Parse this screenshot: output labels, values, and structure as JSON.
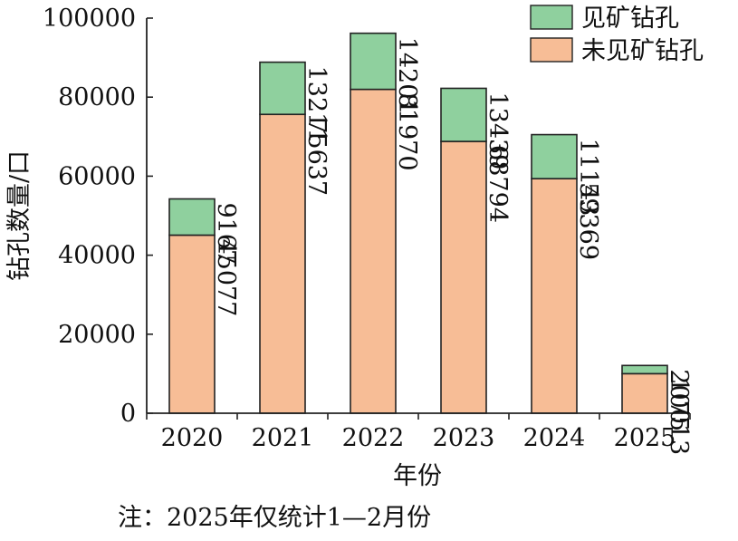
{
  "chart_data": {
    "type": "bar",
    "stacked": true,
    "categories": [
      "2020",
      "2021",
      "2022",
      "2023",
      "2024",
      "2025"
    ],
    "series": [
      {
        "name": "未见矿钻孔",
        "values": [
          45077,
          75637,
          81970,
          68794,
          59369,
          10013
        ],
        "color": "#f7bd96"
      },
      {
        "name": "见矿钻孔",
        "values": [
          9167,
          13211,
          14201,
          13439,
          11143,
          2075
        ],
        "color": "#8fd09e"
      }
    ],
    "xlabel": "年份",
    "ylabel": "钻孔数量/口",
    "ylim": [
      0,
      100000
    ],
    "yticks": [
      0,
      20000,
      40000,
      60000,
      80000,
      100000
    ],
    "grid": false,
    "legend_position": "top-right"
  },
  "note": "注：2025年仅统计1—2月份"
}
